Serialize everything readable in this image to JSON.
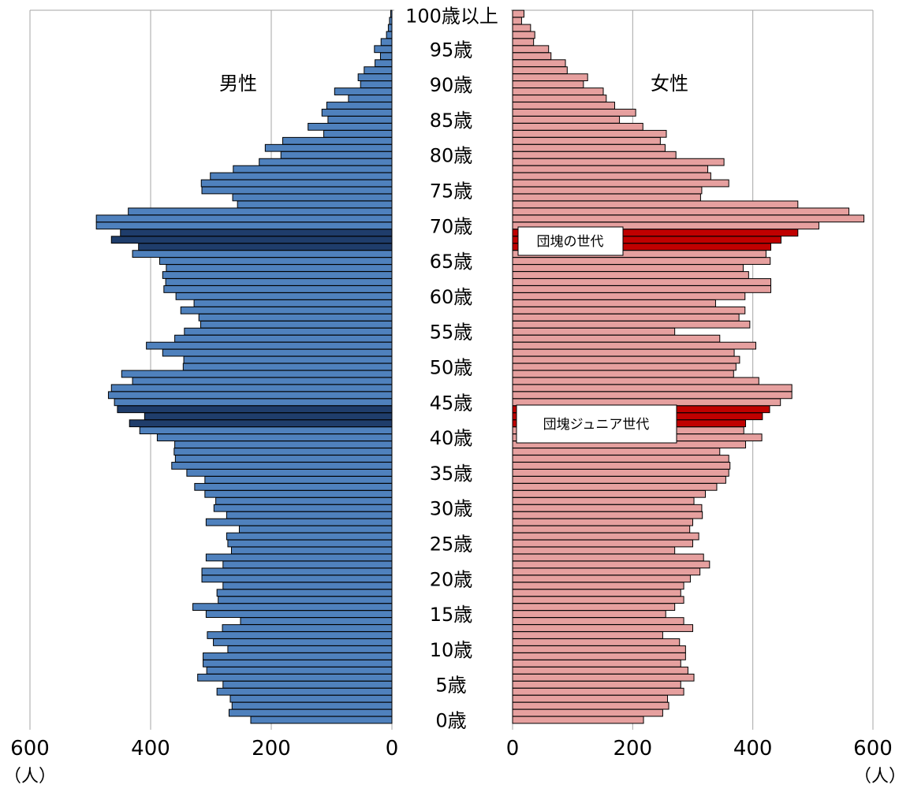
{
  "chart_data": {
    "type": "bar",
    "orientation": "horizontal-population-pyramid",
    "age_labels": [
      "0歳",
      "5歳",
      "10歳",
      "15歳",
      "20歳",
      "25歳",
      "30歳",
      "35歳",
      "40歳",
      "45歳",
      "50歳",
      "55歳",
      "60歳",
      "65歳",
      "70歳",
      "75歳",
      "80歳",
      "85歳",
      "90歳",
      "95歳",
      "100歳以上"
    ],
    "ages": [
      0,
      1,
      2,
      3,
      4,
      5,
      6,
      7,
      8,
      9,
      10,
      11,
      12,
      13,
      14,
      15,
      16,
      17,
      18,
      19,
      20,
      21,
      22,
      23,
      24,
      25,
      26,
      27,
      28,
      29,
      30,
      31,
      32,
      33,
      34,
      35,
      36,
      37,
      38,
      39,
      40,
      41,
      42,
      43,
      44,
      45,
      46,
      47,
      48,
      49,
      50,
      51,
      52,
      53,
      54,
      55,
      56,
      57,
      58,
      59,
      60,
      61,
      62,
      63,
      64,
      65,
      66,
      67,
      68,
      69,
      70,
      71,
      72,
      73,
      74,
      75,
      76,
      77,
      78,
      79,
      80,
      81,
      82,
      83,
      84,
      85,
      86,
      87,
      88,
      89,
      90,
      91,
      92,
      93,
      94,
      95,
      96,
      97,
      98,
      99,
      100
    ],
    "series": [
      {
        "name": "男性",
        "color": "#4f81bd",
        "highlight_color": "#1f3d6b",
        "values": [
          234,
          270,
          265,
          268,
          290,
          280,
          322,
          307,
          313,
          313,
          272,
          296,
          306,
          281,
          251,
          308,
          330,
          288,
          290,
          280,
          315,
          315,
          280,
          308,
          266,
          272,
          274,
          253,
          308,
          274,
          295,
          292,
          310,
          327,
          310,
          340,
          365,
          359,
          361,
          360,
          389,
          418,
          435,
          410,
          455,
          460,
          470,
          465,
          430,
          448,
          346,
          345,
          380,
          407,
          360,
          344,
          317,
          320,
          350,
          328,
          358,
          378,
          375,
          380,
          374,
          385,
          430,
          420,
          465,
          450,
          490,
          490,
          437,
          256,
          264,
          315,
          316,
          301,
          263,
          220,
          184,
          210,
          181,
          113,
          139,
          106,
          116,
          108,
          72,
          95,
          52,
          56,
          46,
          28,
          19,
          29,
          18,
          9,
          6,
          4,
          2
        ]
      },
      {
        "name": "女性",
        "color": "#e6a09f",
        "highlight_color": "#c00000",
        "values": [
          218,
          250,
          260,
          258,
          285,
          280,
          302,
          292,
          280,
          288,
          288,
          278,
          250,
          300,
          285,
          255,
          270,
          285,
          280,
          285,
          296,
          312,
          328,
          318,
          270,
          300,
          310,
          295,
          300,
          316,
          315,
          302,
          321,
          340,
          355,
          360,
          362,
          360,
          345,
          388,
          415,
          385,
          388,
          416,
          428,
          446,
          465,
          465,
          410,
          368,
          372,
          378,
          369,
          405,
          345,
          270,
          395,
          377,
          387,
          338,
          387,
          430,
          430,
          393,
          384,
          429,
          422,
          430,
          447,
          475,
          510,
          585,
          560,
          475,
          313,
          315,
          360,
          330,
          325,
          352,
          272,
          254,
          246,
          256,
          217,
          178,
          205,
          170,
          156,
          151,
          118,
          125,
          91,
          88,
          64,
          60,
          35,
          37,
          30,
          15,
          19
        ]
      }
    ],
    "highlight_ages": [
      42,
      43,
      44,
      67,
      68,
      69
    ],
    "xlim": [
      0,
      600
    ],
    "x_ticks": [
      "600",
      "400",
      "200",
      "0",
      "0",
      "200",
      "400",
      "600"
    ],
    "x_unit": "（人）",
    "grid": true,
    "annotations": [
      "団塊の世代",
      "団塊ジュニア世代"
    ]
  }
}
